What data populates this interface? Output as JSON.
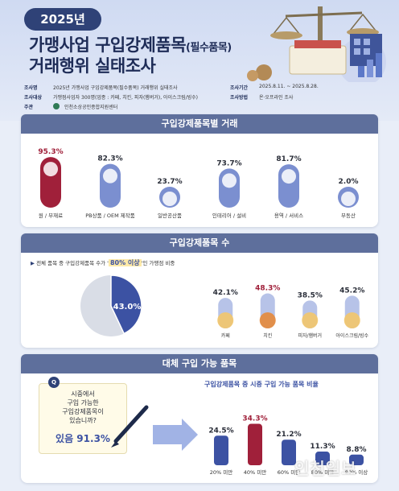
{
  "header": {
    "year": "2025년",
    "title_line1": "가맹사업 구입강제품목",
    "title_line1_small": "(필수품목)",
    "title_line2": "거래행위 실태조사",
    "info": [
      {
        "key": "조사명",
        "value": "2025년 가맹사업 구입강제품목(필수품목) 거래행위 실태조사"
      },
      {
        "key": "조사대상",
        "value": "가맹점사업자 300명(업종 : 카페, 치킨, 피자(햄버거), 아이스크림/빙수)"
      },
      {
        "key": "주관",
        "value": "인천소상공인종합지원센터"
      },
      {
        "key": "조사기간",
        "value": "2025.8.11. ~ 2025.8.28."
      },
      {
        "key": "조사방법",
        "value": "온·오프라인 조사"
      }
    ]
  },
  "section1": {
    "title": "구입강제품목별 거래"
  },
  "section2": {
    "title": "구입강제품목 수",
    "caption_pre": "전체 품목 중 구입강제품목 수가 '",
    "caption_hl": "80% 이상",
    "caption_post": "'인 가맹점 비중"
  },
  "section3": {
    "title": "대체 구입 가능 품목",
    "note_lines": [
      "시중에서",
      "구입 가능한",
      "구입강제품목이",
      "있습니까?"
    ],
    "note_answer": "있음 91.3%",
    "note_q": "Q",
    "subtitle": "구입강제품목 중 시중 구입 가능 품목 비율"
  },
  "watermark": "인천일보",
  "colors": {
    "navy": "#2f4277",
    "accent": "#3c52a3",
    "crimson": "#a0203a",
    "bar_blue": "#7b8fd0",
    "bar_light": "#b7c3e8"
  },
  "chart_data": [
    {
      "type": "bar",
      "title": "구입강제품목별 거래",
      "categories": [
        "원 / 부재료",
        "PB상품 / OEM 제작품",
        "일반공산품",
        "인테리어 / 설비",
        "용역 / 서비스",
        "부동산"
      ],
      "values": [
        95.3,
        82.3,
        23.7,
        73.7,
        81.7,
        2.0
      ],
      "value_labels": [
        "95.3%",
        "82.3%",
        "23.7%",
        "73.7%",
        "81.7%",
        "2.0%"
      ],
      "icons": [
        "coffee-beans-icon",
        "pb-products-icon",
        "teapot-icon",
        "paint-roller-icon",
        "stars-rating-icon",
        "house-icon"
      ],
      "ylim": [
        0,
        100
      ]
    },
    {
      "type": "pie",
      "slices": [
        {
          "label": "43.0%",
          "value": 43.0
        },
        {
          "label": "",
          "value": 57.0
        }
      ]
    },
    {
      "type": "bar",
      "categories": [
        "카페",
        "치킨",
        "피자/햄버거",
        "아이스크림/빙수"
      ],
      "values": [
        42.1,
        48.3,
        38.5,
        45.2
      ],
      "value_labels": [
        "42.1%",
        "48.3%",
        "38.5%",
        "45.2%"
      ],
      "icons": [
        "coffee-cup-icon",
        "chicken-icon",
        "burger-icon",
        "ice-cream-icon"
      ],
      "ylim": [
        0,
        100
      ]
    },
    {
      "type": "bar",
      "title": "구입강제품목 중 시중 구입 가능 품목 비율",
      "categories": [
        "20% 미만",
        "40% 미만",
        "60% 미만",
        "80% 미만",
        "80% 이상"
      ],
      "values": [
        24.5,
        34.3,
        21.2,
        11.3,
        8.8
      ],
      "value_labels": [
        "24.5%",
        "34.3%",
        "21.2%",
        "11.3%",
        "8.8%"
      ],
      "ylim": [
        0,
        40
      ]
    }
  ]
}
